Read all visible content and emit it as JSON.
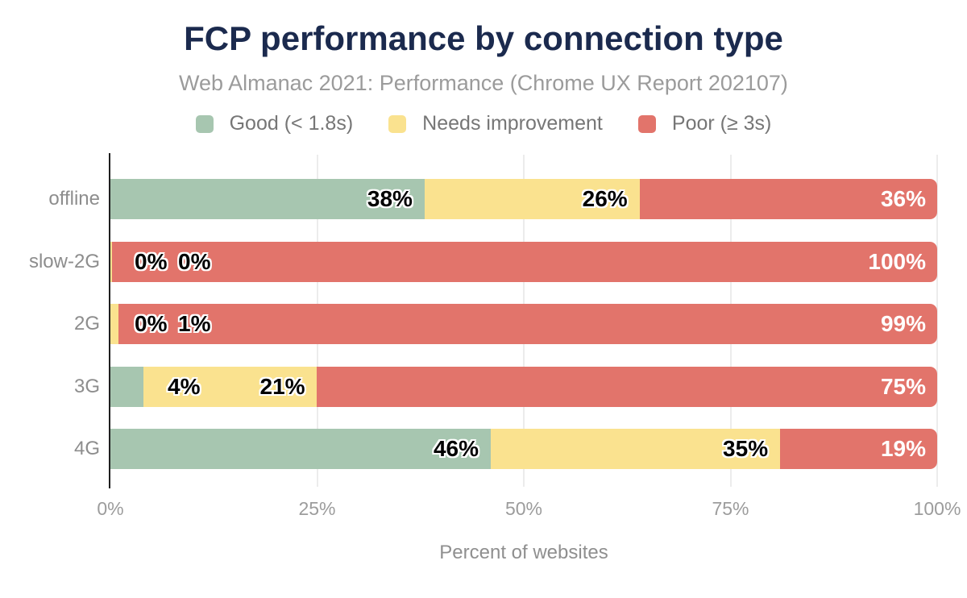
{
  "header": {
    "title": "FCP performance by connection type",
    "subtitle": "Web Almanac 2021: Performance (Chrome UX Report 202107)"
  },
  "palette": {
    "title_navy": "#1b2a4e",
    "good_green": "#a7c6b0",
    "needs_improvement_yellow": "#fae28f",
    "poor_red": "#e2746b"
  },
  "legend": [
    {
      "label": "Good (< 1.8s)",
      "color": "#a7c6b0"
    },
    {
      "label": "Needs improvement",
      "color": "#fae28f"
    },
    {
      "label": "Poor (≥ 3s)",
      "color": "#e2746b"
    }
  ],
  "chart_data": {
    "type": "bar",
    "orientation": "horizontal",
    "stacked": true,
    "title": "FCP performance by connection type",
    "subtitle": "Web Almanac 2021: Performance (Chrome UX Report 202107)",
    "categories": [
      "offline",
      "slow-2G",
      "2G",
      "3G",
      "4G"
    ],
    "series": [
      {
        "name": "Good (< 1.8s)",
        "color": "#a7c6b0",
        "values": [
          38,
          0,
          0,
          4,
          46
        ],
        "labels": [
          "38%",
          "0%",
          "0%",
          "4%",
          "46%"
        ]
      },
      {
        "name": "Needs improvement",
        "color": "#fae28f",
        "values": [
          26,
          0.2,
          1,
          21,
          35
        ],
        "labels": [
          "26%",
          "0%",
          "1%",
          "21%",
          "35%"
        ]
      },
      {
        "name": "Poor (≥ 3s)",
        "color": "#e2746b",
        "values": [
          36,
          99.8,
          99,
          75,
          19
        ],
        "labels": [
          "36%",
          "100%",
          "99%",
          "75%",
          "19%"
        ]
      }
    ],
    "xlabel": "Percent of websites",
    "x_ticks": [
      "0%",
      "25%",
      "50%",
      "75%",
      "100%"
    ],
    "x_tick_values": [
      0,
      25,
      50,
      75,
      100
    ],
    "xlim": [
      0,
      100
    ],
    "grid": "vertical",
    "legend_position": "top"
  }
}
